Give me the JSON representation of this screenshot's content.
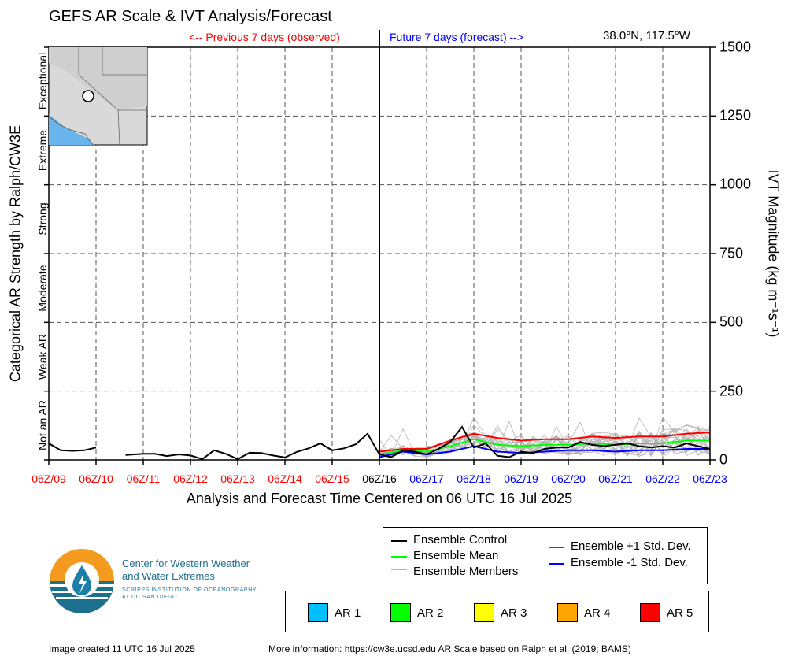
{
  "title": "GEFS AR Scale & IVT Analysis/Forecast",
  "previous_label": "<-- Previous 7 days (observed)",
  "future_label": "Future 7 days (forecast) -->",
  "location": "38.0°N, 117.5°W",
  "y_left_title": "Categorical AR Strength by Ralph/CW3E",
  "y_right_title": "IVT Magnitude (kg m⁻¹s⁻¹)",
  "x_title": "Analysis and Forecast Time Centered on 06 UTC 16 Jul 2025",
  "category_labels": [
    "Not an AR",
    "Weak AR",
    "Moderate",
    "Strong",
    "Extreme",
    "Exceptional"
  ],
  "y_tick_labels": [
    "0",
    "250",
    "500",
    "750",
    "1000",
    "1250",
    "1500"
  ],
  "x_tick_labels": [
    "06Z/09",
    "06Z/10",
    "06Z/11",
    "06Z/12",
    "06Z/13",
    "06Z/14",
    "06Z/15",
    "06Z/16",
    "06Z/17",
    "06Z/18",
    "06Z/19",
    "06Z/20",
    "06Z/21",
    "06Z/22",
    "06Z/23"
  ],
  "colors": {
    "observed_ticks": "#ff0000",
    "analysis_tick": "#000000",
    "forecast_ticks": "#0000ff",
    "control": "#000000",
    "mean": "#00ff00",
    "members": "#b4b4b4",
    "plus_std": "#ff0000",
    "minus_std": "#0000ff"
  },
  "legend": {
    "control": "Ensemble Control",
    "mean": "Ensemble Mean",
    "members": "Ensemble Members",
    "plus_std": "Ensemble +1 Std. Dev.",
    "minus_std": "Ensemble -1 Std. Dev."
  },
  "ar_scale": [
    {
      "label": "AR 1",
      "color": "#00bfff"
    },
    {
      "label": "AR 2",
      "color": "#00ff00"
    },
    {
      "label": "AR 3",
      "color": "#ffff00"
    },
    {
      "label": "AR 4",
      "color": "#ffa500"
    },
    {
      "label": "AR 5",
      "color": "#ff0000"
    }
  ],
  "cw3e": {
    "name_line1": "Center for Western Weather",
    "name_line2": "and Water Extremes",
    "sub_line1": "SCRIPPS INSTITUTION OF OCEANOGRAPHY",
    "sub_line2": "AT UC SAN DIEGO"
  },
  "footer": {
    "created": "Image created 11 UTC 16 Jul 2025",
    "more_info": "More information: https://cw3e.ucsd.edu AR Scale based on Ralph et al. (2019; BAMS)"
  },
  "chart_data": {
    "type": "line",
    "x_unit": "days relative to 06Z/16 Jul 2025",
    "xlim": [
      -7,
      7
    ],
    "ylim": [
      0,
      1500
    ],
    "ylabel": "IVT Magnitude (kg m⁻¹s⁻¹)",
    "grid": true,
    "ar_category_thresholds": [
      0,
      250,
      500,
      750,
      1000,
      1250,
      1500
    ],
    "analysis_time": 0,
    "series": [
      {
        "name": "Ensemble Control",
        "segments": [
          {
            "x": [
              -7,
              -6.75,
              -6.5,
              -6.25,
              -6
            ],
            "y": [
              60,
              35,
              33,
              35,
              45
            ]
          },
          {
            "x": [
              -5.375,
              -5,
              -4.75,
              -4.5,
              -4.25,
              -4,
              -3.75,
              -3.5,
              -3.25,
              -3,
              -2.75,
              -2.5,
              -2.25,
              -2,
              -1.75,
              -1.5,
              -1.25,
              -1,
              -0.75,
              -0.5,
              -0.25,
              0,
              0.25,
              0.5,
              0.75,
              1,
              1.25,
              1.5,
              1.75,
              2,
              2.25,
              2.5,
              2.75,
              3,
              3.25,
              3.5,
              3.75,
              4,
              4.25,
              4.5,
              4.75,
              5,
              5.25,
              5.5,
              5.75,
              6,
              6.25,
              6.5,
              6.75,
              7
            ],
            "y": [
              18,
              22,
              22,
              14,
              20,
              16,
              3,
              35,
              22,
              3,
              26,
              25,
              16,
              9,
              29,
              42,
              60,
              35,
              42,
              57,
              95,
              20,
              10,
              35,
              30,
              20,
              40,
              65,
              120,
              45,
              60,
              15,
              10,
              30,
              25,
              40,
              45,
              45,
              65,
              55,
              50,
              55,
              60,
              50,
              45,
              50,
              45,
              60,
              50,
              40
            ]
          }
        ]
      },
      {
        "name": "Ensemble Mean",
        "x": [
          0,
          0.5,
          1,
          1.5,
          2,
          2.5,
          3,
          3.5,
          4,
          4.5,
          5,
          5.5,
          6,
          6.5,
          7
        ],
        "y": [
          20,
          35,
          30,
          50,
          75,
          55,
          50,
          55,
          55,
          60,
          55,
          60,
          60,
          70,
          70
        ]
      },
      {
        "name": "Ensemble +1 Std. Dev.",
        "x": [
          0,
          0.5,
          1,
          1.5,
          2,
          2.5,
          3,
          3.5,
          4,
          4.5,
          5,
          5.5,
          6,
          6.5,
          7
        ],
        "y": [
          30,
          40,
          40,
          70,
          95,
          80,
          70,
          75,
          75,
          85,
          80,
          85,
          85,
          95,
          100
        ]
      },
      {
        "name": "Ensemble -1 Std. Dev.",
        "x": [
          0,
          0.5,
          1,
          1.5,
          2,
          2.5,
          3,
          3.5,
          4,
          4.5,
          5,
          5.5,
          6,
          6.5,
          7
        ],
        "y": [
          10,
          30,
          20,
          30,
          50,
          30,
          25,
          30,
          35,
          35,
          30,
          35,
          35,
          40,
          40
        ]
      }
    ]
  }
}
